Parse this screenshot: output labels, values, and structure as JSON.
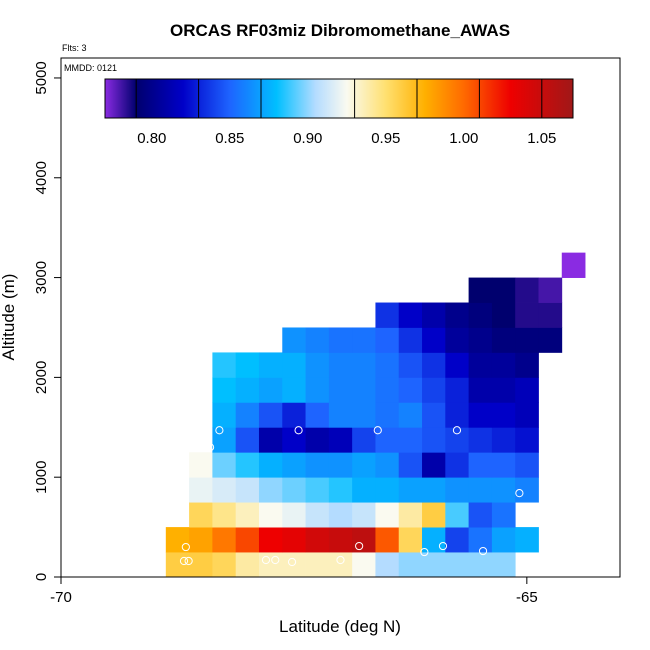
{
  "chart_data": {
    "type": "heatmap",
    "title": "ORCAS RF03miz Dibromomethane_AWAS",
    "annotations": {
      "flts": "Flts: 3",
      "mmdd": "MMDD: 0121"
    },
    "xlabel": "Latitude (deg N)",
    "ylabel": "Altitude (m)",
    "xlim": [
      -70,
      -64
    ],
    "ylim": [
      0,
      5200
    ],
    "xticks": [
      -70,
      -65
    ],
    "xtick_labels": [
      "-70",
      "-65"
    ],
    "yticks": [
      0,
      1000,
      2000,
      3000,
      4000,
      5000
    ],
    "ytick_labels": [
      "0",
      "1000",
      "2000",
      "3000",
      "4000",
      "5000"
    ],
    "colorbar": {
      "range": [
        0.77,
        1.07
      ],
      "ticks": [
        0.8,
        0.85,
        0.9,
        0.95,
        1.0,
        1.05
      ],
      "tick_labels": [
        "0.80",
        "0.85",
        "0.90",
        "0.95",
        "1.00",
        "1.05"
      ],
      "boundaries": [
        0.79,
        0.83,
        0.87,
        0.93,
        0.97,
        1.01,
        1.05
      ],
      "stops": [
        {
          "v": 0.77,
          "c": "#8a2be2"
        },
        {
          "v": 0.79,
          "c": "#00006e"
        },
        {
          "v": 0.82,
          "c": "#0000c8"
        },
        {
          "v": 0.85,
          "c": "#1e64ff"
        },
        {
          "v": 0.88,
          "c": "#00bfff"
        },
        {
          "v": 0.905,
          "c": "#b4dcff"
        },
        {
          "v": 0.925,
          "c": "#fafaf0"
        },
        {
          "v": 0.95,
          "c": "#ffe070"
        },
        {
          "v": 0.975,
          "c": "#ffb000"
        },
        {
          "v": 1.0,
          "c": "#ff6a00"
        },
        {
          "v": 1.03,
          "c": "#ee0000"
        },
        {
          "v": 1.07,
          "c": "#a01818"
        }
      ]
    },
    "cell_size": {
      "dlat": 0.25,
      "dalt": 250
    },
    "cells": [
      {
        "lat": -68.75,
        "alt": 0,
        "v": 0.96
      },
      {
        "lat": -68.5,
        "alt": 0,
        "v": 0.96
      },
      {
        "lat": -68.25,
        "alt": 0,
        "v": 0.955
      },
      {
        "lat": -68.0,
        "alt": 0,
        "v": 0.94
      },
      {
        "lat": -67.75,
        "alt": 0,
        "v": 0.935
      },
      {
        "lat": -67.5,
        "alt": 0,
        "v": 0.935
      },
      {
        "lat": -67.25,
        "alt": 0,
        "v": 0.935
      },
      {
        "lat": -67.0,
        "alt": 0,
        "v": 0.935
      },
      {
        "lat": -66.75,
        "alt": 0,
        "v": 0.925
      },
      {
        "lat": -66.5,
        "alt": 0,
        "v": 0.905
      },
      {
        "lat": -66.25,
        "alt": 0,
        "v": 0.9
      },
      {
        "lat": -66.0,
        "alt": 0,
        "v": 0.9
      },
      {
        "lat": -65.75,
        "alt": 0,
        "v": 0.9
      },
      {
        "lat": -65.5,
        "alt": 0,
        "v": 0.9
      },
      {
        "lat": -65.25,
        "alt": 0,
        "v": 0.9
      },
      {
        "lat": -68.75,
        "alt": 250,
        "v": 0.975
      },
      {
        "lat": -68.5,
        "alt": 250,
        "v": 0.98
      },
      {
        "lat": -68.25,
        "alt": 250,
        "v": 0.995
      },
      {
        "lat": -68.0,
        "alt": 250,
        "v": 1.01
      },
      {
        "lat": -67.75,
        "alt": 250,
        "v": 1.03
      },
      {
        "lat": -67.5,
        "alt": 250,
        "v": 1.035
      },
      {
        "lat": -67.25,
        "alt": 250,
        "v": 1.045
      },
      {
        "lat": -67.0,
        "alt": 250,
        "v": 1.05
      },
      {
        "lat": -66.75,
        "alt": 250,
        "v": 1.055
      },
      {
        "lat": -66.5,
        "alt": 250,
        "v": 1.005
      },
      {
        "lat": -66.25,
        "alt": 250,
        "v": 0.955
      },
      {
        "lat": -66.0,
        "alt": 250,
        "v": 0.875
      },
      {
        "lat": -65.75,
        "alt": 250,
        "v": 0.84
      },
      {
        "lat": -65.5,
        "alt": 250,
        "v": 0.855
      },
      {
        "lat": -65.25,
        "alt": 250,
        "v": 0.87
      },
      {
        "lat": -65.0,
        "alt": 250,
        "v": 0.875
      },
      {
        "lat": -68.5,
        "alt": 500,
        "v": 0.955
      },
      {
        "lat": -68.25,
        "alt": 500,
        "v": 0.945
      },
      {
        "lat": -68.0,
        "alt": 500,
        "v": 0.935
      },
      {
        "lat": -67.75,
        "alt": 500,
        "v": 0.925
      },
      {
        "lat": -67.5,
        "alt": 500,
        "v": 0.92
      },
      {
        "lat": -67.25,
        "alt": 500,
        "v": 0.91
      },
      {
        "lat": -67.0,
        "alt": 500,
        "v": 0.905
      },
      {
        "lat": -66.75,
        "alt": 500,
        "v": 0.91
      },
      {
        "lat": -66.5,
        "alt": 500,
        "v": 0.925
      },
      {
        "lat": -66.25,
        "alt": 500,
        "v": 0.94
      },
      {
        "lat": -66.0,
        "alt": 500,
        "v": 0.96
      },
      {
        "lat": -65.75,
        "alt": 500,
        "v": 0.89
      },
      {
        "lat": -65.5,
        "alt": 500,
        "v": 0.845
      },
      {
        "lat": -65.25,
        "alt": 500,
        "v": 0.855
      },
      {
        "lat": -68.5,
        "alt": 750,
        "v": 0.92
      },
      {
        "lat": -68.25,
        "alt": 750,
        "v": 0.915
      },
      {
        "lat": -68.0,
        "alt": 750,
        "v": 0.91
      },
      {
        "lat": -67.75,
        "alt": 750,
        "v": 0.9
      },
      {
        "lat": -67.5,
        "alt": 750,
        "v": 0.895
      },
      {
        "lat": -67.25,
        "alt": 750,
        "v": 0.89
      },
      {
        "lat": -67.0,
        "alt": 750,
        "v": 0.885
      },
      {
        "lat": -66.75,
        "alt": 750,
        "v": 0.875
      },
      {
        "lat": -66.5,
        "alt": 750,
        "v": 0.875
      },
      {
        "lat": -66.25,
        "alt": 750,
        "v": 0.87
      },
      {
        "lat": -66.0,
        "alt": 750,
        "v": 0.87
      },
      {
        "lat": -65.75,
        "alt": 750,
        "v": 0.865
      },
      {
        "lat": -65.5,
        "alt": 750,
        "v": 0.865
      },
      {
        "lat": -65.25,
        "alt": 750,
        "v": 0.865
      },
      {
        "lat": -65.0,
        "alt": 750,
        "v": 0.86
      },
      {
        "lat": -68.5,
        "alt": 1000,
        "v": 0.925
      },
      {
        "lat": -68.25,
        "alt": 1000,
        "v": 0.895
      },
      {
        "lat": -68.0,
        "alt": 1000,
        "v": 0.885
      },
      {
        "lat": -67.75,
        "alt": 1000,
        "v": 0.875
      },
      {
        "lat": -67.5,
        "alt": 1000,
        "v": 0.87
      },
      {
        "lat": -67.25,
        "alt": 1000,
        "v": 0.865
      },
      {
        "lat": -67.0,
        "alt": 1000,
        "v": 0.865
      },
      {
        "lat": -66.75,
        "alt": 1000,
        "v": 0.87
      },
      {
        "lat": -66.5,
        "alt": 1000,
        "v": 0.865
      },
      {
        "lat": -66.25,
        "alt": 1000,
        "v": 0.845
      },
      {
        "lat": -66.0,
        "alt": 1000,
        "v": 0.81
      },
      {
        "lat": -65.75,
        "alt": 1000,
        "v": 0.835
      },
      {
        "lat": -65.5,
        "alt": 1000,
        "v": 0.85
      },
      {
        "lat": -65.25,
        "alt": 1000,
        "v": 0.85
      },
      {
        "lat": -65.0,
        "alt": 1000,
        "v": 0.845
      },
      {
        "lat": -68.25,
        "alt": 1250,
        "v": 0.87
      },
      {
        "lat": -68.0,
        "alt": 1250,
        "v": 0.845
      },
      {
        "lat": -67.75,
        "alt": 1250,
        "v": 0.81
      },
      {
        "lat": -67.5,
        "alt": 1250,
        "v": 0.82
      },
      {
        "lat": -67.25,
        "alt": 1250,
        "v": 0.81
      },
      {
        "lat": -67.0,
        "alt": 1250,
        "v": 0.815
      },
      {
        "lat": -66.75,
        "alt": 1250,
        "v": 0.84
      },
      {
        "lat": -66.5,
        "alt": 1250,
        "v": 0.85
      },
      {
        "lat": -66.25,
        "alt": 1250,
        "v": 0.85
      },
      {
        "lat": -66.0,
        "alt": 1250,
        "v": 0.845
      },
      {
        "lat": -65.75,
        "alt": 1250,
        "v": 0.84
      },
      {
        "lat": -65.5,
        "alt": 1250,
        "v": 0.835
      },
      {
        "lat": -65.25,
        "alt": 1250,
        "v": 0.83
      },
      {
        "lat": -65.0,
        "alt": 1250,
        "v": 0.825
      },
      {
        "lat": -68.25,
        "alt": 1500,
        "v": 0.875
      },
      {
        "lat": -68.0,
        "alt": 1500,
        "v": 0.86
      },
      {
        "lat": -67.75,
        "alt": 1500,
        "v": 0.845
      },
      {
        "lat": -67.5,
        "alt": 1500,
        "v": 0.83
      },
      {
        "lat": -67.25,
        "alt": 1500,
        "v": 0.85
      },
      {
        "lat": -67.0,
        "alt": 1500,
        "v": 0.86
      },
      {
        "lat": -66.75,
        "alt": 1500,
        "v": 0.86
      },
      {
        "lat": -66.5,
        "alt": 1500,
        "v": 0.855
      },
      {
        "lat": -66.25,
        "alt": 1500,
        "v": 0.86
      },
      {
        "lat": -66.0,
        "alt": 1500,
        "v": 0.845
      },
      {
        "lat": -65.75,
        "alt": 1500,
        "v": 0.83
      },
      {
        "lat": -65.5,
        "alt": 1500,
        "v": 0.82
      },
      {
        "lat": -65.25,
        "alt": 1500,
        "v": 0.82
      },
      {
        "lat": -65.0,
        "alt": 1500,
        "v": 0.815
      },
      {
        "lat": -68.25,
        "alt": 1750,
        "v": 0.88
      },
      {
        "lat": -68.0,
        "alt": 1750,
        "v": 0.875
      },
      {
        "lat": -67.75,
        "alt": 1750,
        "v": 0.87
      },
      {
        "lat": -67.5,
        "alt": 1750,
        "v": 0.875
      },
      {
        "lat": -67.25,
        "alt": 1750,
        "v": 0.865
      },
      {
        "lat": -67.0,
        "alt": 1750,
        "v": 0.86
      },
      {
        "lat": -66.75,
        "alt": 1750,
        "v": 0.86
      },
      {
        "lat": -66.5,
        "alt": 1750,
        "v": 0.855
      },
      {
        "lat": -66.25,
        "alt": 1750,
        "v": 0.85
      },
      {
        "lat": -66.0,
        "alt": 1750,
        "v": 0.84
      },
      {
        "lat": -65.75,
        "alt": 1750,
        "v": 0.83
      },
      {
        "lat": -65.5,
        "alt": 1750,
        "v": 0.81
      },
      {
        "lat": -65.25,
        "alt": 1750,
        "v": 0.81
      },
      {
        "lat": -65.0,
        "alt": 1750,
        "v": 0.815
      },
      {
        "lat": -68.25,
        "alt": 2000,
        "v": 0.885
      },
      {
        "lat": -68.0,
        "alt": 2000,
        "v": 0.88
      },
      {
        "lat": -67.75,
        "alt": 2000,
        "v": 0.875
      },
      {
        "lat": -67.5,
        "alt": 2000,
        "v": 0.875
      },
      {
        "lat": -67.25,
        "alt": 2000,
        "v": 0.865
      },
      {
        "lat": -67.0,
        "alt": 2000,
        "v": 0.86
      },
      {
        "lat": -66.75,
        "alt": 2000,
        "v": 0.86
      },
      {
        "lat": -66.5,
        "alt": 2000,
        "v": 0.855
      },
      {
        "lat": -66.25,
        "alt": 2000,
        "v": 0.845
      },
      {
        "lat": -66.0,
        "alt": 2000,
        "v": 0.835
      },
      {
        "lat": -65.75,
        "alt": 2000,
        "v": 0.82
      },
      {
        "lat": -65.5,
        "alt": 2000,
        "v": 0.805
      },
      {
        "lat": -65.25,
        "alt": 2000,
        "v": 0.805
      },
      {
        "lat": -65.0,
        "alt": 2000,
        "v": 0.8
      },
      {
        "lat": -67.5,
        "alt": 2250,
        "v": 0.865
      },
      {
        "lat": -67.25,
        "alt": 2250,
        "v": 0.86
      },
      {
        "lat": -67.0,
        "alt": 2250,
        "v": 0.855
      },
      {
        "lat": -66.75,
        "alt": 2250,
        "v": 0.855
      },
      {
        "lat": -66.5,
        "alt": 2250,
        "v": 0.85
      },
      {
        "lat": -66.25,
        "alt": 2250,
        "v": 0.835
      },
      {
        "lat": -66.0,
        "alt": 2250,
        "v": 0.82
      },
      {
        "lat": -65.75,
        "alt": 2250,
        "v": 0.805
      },
      {
        "lat": -65.5,
        "alt": 2250,
        "v": 0.8
      },
      {
        "lat": -65.25,
        "alt": 2250,
        "v": 0.795
      },
      {
        "lat": -65.0,
        "alt": 2250,
        "v": 0.795
      },
      {
        "lat": -64.75,
        "alt": 2250,
        "v": 0.795
      },
      {
        "lat": -66.5,
        "alt": 2500,
        "v": 0.835
      },
      {
        "lat": -66.25,
        "alt": 2500,
        "v": 0.82
      },
      {
        "lat": -66.0,
        "alt": 2500,
        "v": 0.81
      },
      {
        "lat": -65.75,
        "alt": 2500,
        "v": 0.8
      },
      {
        "lat": -65.5,
        "alt": 2500,
        "v": 0.795
      },
      {
        "lat": -65.25,
        "alt": 2500,
        "v": 0.79
      },
      {
        "lat": -65.0,
        "alt": 2500,
        "v": 0.785
      },
      {
        "lat": -64.75,
        "alt": 2500,
        "v": 0.785
      },
      {
        "lat": -65.5,
        "alt": 2750,
        "v": 0.79
      },
      {
        "lat": -65.25,
        "alt": 2750,
        "v": 0.79
      },
      {
        "lat": -65.0,
        "alt": 2750,
        "v": 0.785
      },
      {
        "lat": -64.75,
        "alt": 2750,
        "v": 0.78
      },
      {
        "lat": -64.5,
        "alt": 3000,
        "v": 0.77
      }
    ],
    "samples": [
      {
        "lat": -68.68,
        "alt": 160
      },
      {
        "lat": -68.63,
        "alt": 160
      },
      {
        "lat": -68.66,
        "alt": 300
      },
      {
        "lat": -67.8,
        "alt": 170
      },
      {
        "lat": -67.7,
        "alt": 170
      },
      {
        "lat": -67.52,
        "alt": 150
      },
      {
        "lat": -67.0,
        "alt": 170
      },
      {
        "lat": -66.8,
        "alt": 310
      },
      {
        "lat": -66.1,
        "alt": 250
      },
      {
        "lat": -65.9,
        "alt": 310
      },
      {
        "lat": -65.47,
        "alt": 260
      },
      {
        "lat": -65.08,
        "alt": 840
      },
      {
        "lat": -68.4,
        "alt": 1300
      },
      {
        "lat": -68.3,
        "alt": 1470
      },
      {
        "lat": -67.45,
        "alt": 1470
      },
      {
        "lat": -66.6,
        "alt": 1470
      },
      {
        "lat": -65.75,
        "alt": 1470
      },
      {
        "lat": -68.5,
        "alt": 2230
      },
      {
        "lat": -64.3,
        "alt": 3240
      }
    ],
    "grid": false,
    "legend": "none"
  }
}
